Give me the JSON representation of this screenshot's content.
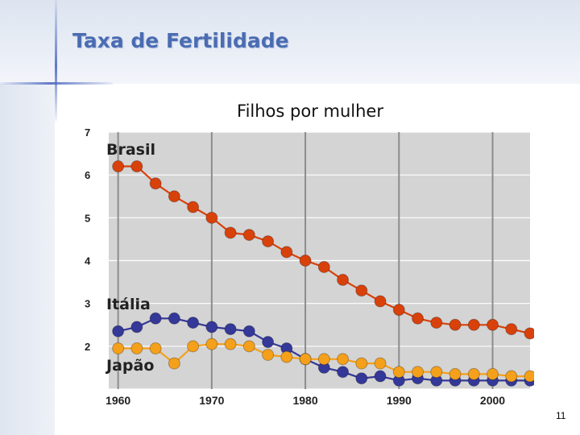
{
  "slide": {
    "title": "Taxa de Fertilidade",
    "page_number": "11"
  },
  "colors": {
    "Brasil": "#d9410b",
    "Itália": "#343898",
    "Japão": "#f5a01a",
    "plot_background": "#d4d4d4",
    "gridline": "#8c8c8c"
  },
  "chart_data": {
    "type": "line",
    "title": "Filhos por mulher",
    "xlabel": "",
    "ylabel": "",
    "x_ticks": [
      "1960",
      "1970",
      "1980",
      "1990",
      "2000"
    ],
    "y_ticks": [
      "2",
      "3",
      "4",
      "5",
      "6",
      "7"
    ],
    "xlim": [
      1959,
      2004
    ],
    "ylim": [
      1,
      7
    ],
    "grid": true,
    "legend": "inline labels",
    "x": [
      1960,
      1962,
      1964,
      1966,
      1968,
      1970,
      1972,
      1974,
      1976,
      1978,
      1980,
      1982,
      1984,
      1986,
      1988,
      1990,
      1992,
      1994,
      1996,
      1998,
      2000,
      2002,
      2004
    ],
    "series": [
      {
        "name": "Brasil",
        "values": [
          6.2,
          6.2,
          5.8,
          5.5,
          5.25,
          5.0,
          4.65,
          4.6,
          4.45,
          4.2,
          4.0,
          3.85,
          3.55,
          3.3,
          3.05,
          2.85,
          2.65,
          2.55,
          2.5,
          2.5,
          2.5,
          2.4,
          2.3
        ]
      },
      {
        "name": "Itália",
        "values": [
          2.35,
          2.45,
          2.65,
          2.65,
          2.55,
          2.45,
          2.4,
          2.35,
          2.1,
          1.95,
          1.7,
          1.5,
          1.4,
          1.25,
          1.3,
          1.2,
          1.25,
          1.2,
          1.2,
          1.2,
          1.2,
          1.2,
          1.2
        ]
      },
      {
        "name": "Japão",
        "values": [
          1.95,
          1.95,
          1.95,
          1.6,
          2.0,
          2.05,
          2.05,
          2.0,
          1.8,
          1.75,
          1.7,
          1.7,
          1.7,
          1.6,
          1.6,
          1.4,
          1.4,
          1.4,
          1.35,
          1.35,
          1.35,
          1.3,
          1.3
        ]
      }
    ]
  }
}
